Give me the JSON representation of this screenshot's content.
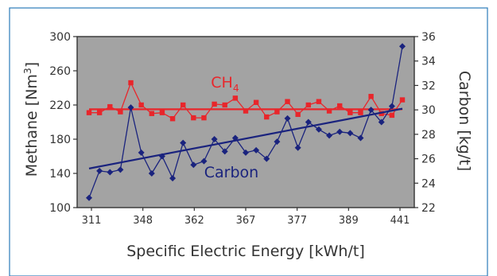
{
  "chart_data": {
    "type": "line",
    "xlabel": "Specific Electric Energy [kWh/t]",
    "ylabel_left": "Methane [Nm3]",
    "ylabel_right": "Carbon [kg/t]",
    "x_tick_labels": [
      "311",
      "348",
      "362",
      "367",
      "377",
      "389",
      "441"
    ],
    "ylim_left": [
      100,
      300
    ],
    "yticks_left": [
      100,
      140,
      180,
      220,
      260,
      300
    ],
    "ylim_right": [
      22,
      36
    ],
    "yticks_right": [
      22,
      24,
      26,
      28,
      30,
      32,
      34,
      36
    ],
    "grid": false,
    "plot_background": "#a3a3a3",
    "series": [
      {
        "name": "CH4",
        "axis": "left",
        "color": "#e8262b",
        "marker": "square",
        "values": [
          211,
          211,
          218,
          212,
          246,
          220,
          210,
          211,
          204,
          220,
          205,
          205,
          221,
          220,
          228,
          213,
          223,
          206,
          212,
          224,
          209,
          220,
          224,
          213,
          219,
          211,
          211,
          230,
          210,
          208,
          226
        ],
        "fit": [
          215,
          215
        ]
      },
      {
        "name": "Carbon",
        "axis": "right",
        "color": "#1a237e",
        "marker": "diamond",
        "values": [
          22.8,
          25.0,
          24.9,
          25.1,
          30.2,
          26.5,
          24.8,
          26.2,
          24.4,
          27.3,
          25.5,
          25.8,
          27.6,
          26.6,
          27.7,
          26.5,
          26.7,
          26.0,
          27.4,
          29.3,
          26.9,
          29.0,
          28.4,
          27.9,
          28.2,
          28.1,
          27.7,
          30.0,
          29.0,
          30.3,
          35.2
        ],
        "fit": [
          25.2,
          30.1
        ]
      }
    ],
    "annotations": [
      {
        "text": "CH4",
        "series": "CH4"
      },
      {
        "text": "Carbon",
        "series": "Carbon"
      }
    ]
  }
}
